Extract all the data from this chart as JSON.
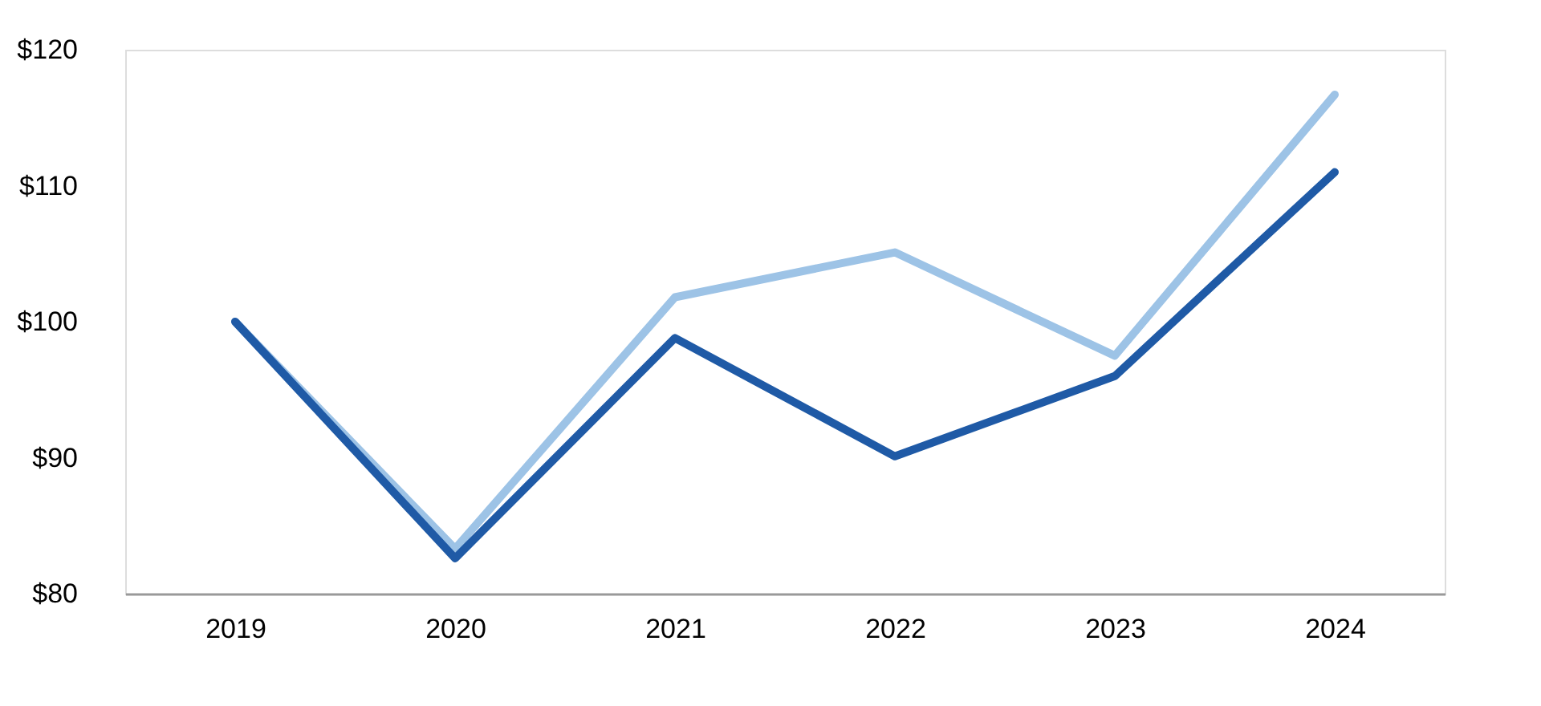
{
  "chart_data": {
    "type": "line",
    "categories": [
      "2019",
      "2020",
      "2021",
      "2022",
      "2023",
      "2024"
    ],
    "series": [
      {
        "color": "#9dc3e6",
        "values": [
          100,
          83.3,
          101.8,
          105.1,
          97.5,
          116.7
        ]
      },
      {
        "color": "#1f5aa6",
        "values": [
          100,
          82.6,
          98.8,
          90.1,
          96.0,
          111.0
        ]
      }
    ],
    "ylim": [
      80,
      120
    ],
    "yticks": [
      {
        "value": 80,
        "label": "$80"
      },
      {
        "value": 90,
        "label": "$90"
      },
      {
        "value": 100,
        "label": "$100"
      },
      {
        "value": 110,
        "label": "$110"
      },
      {
        "value": 120,
        "label": "$120"
      }
    ],
    "grid": false,
    "legend": false,
    "marker": "none",
    "line_style": "solid"
  }
}
